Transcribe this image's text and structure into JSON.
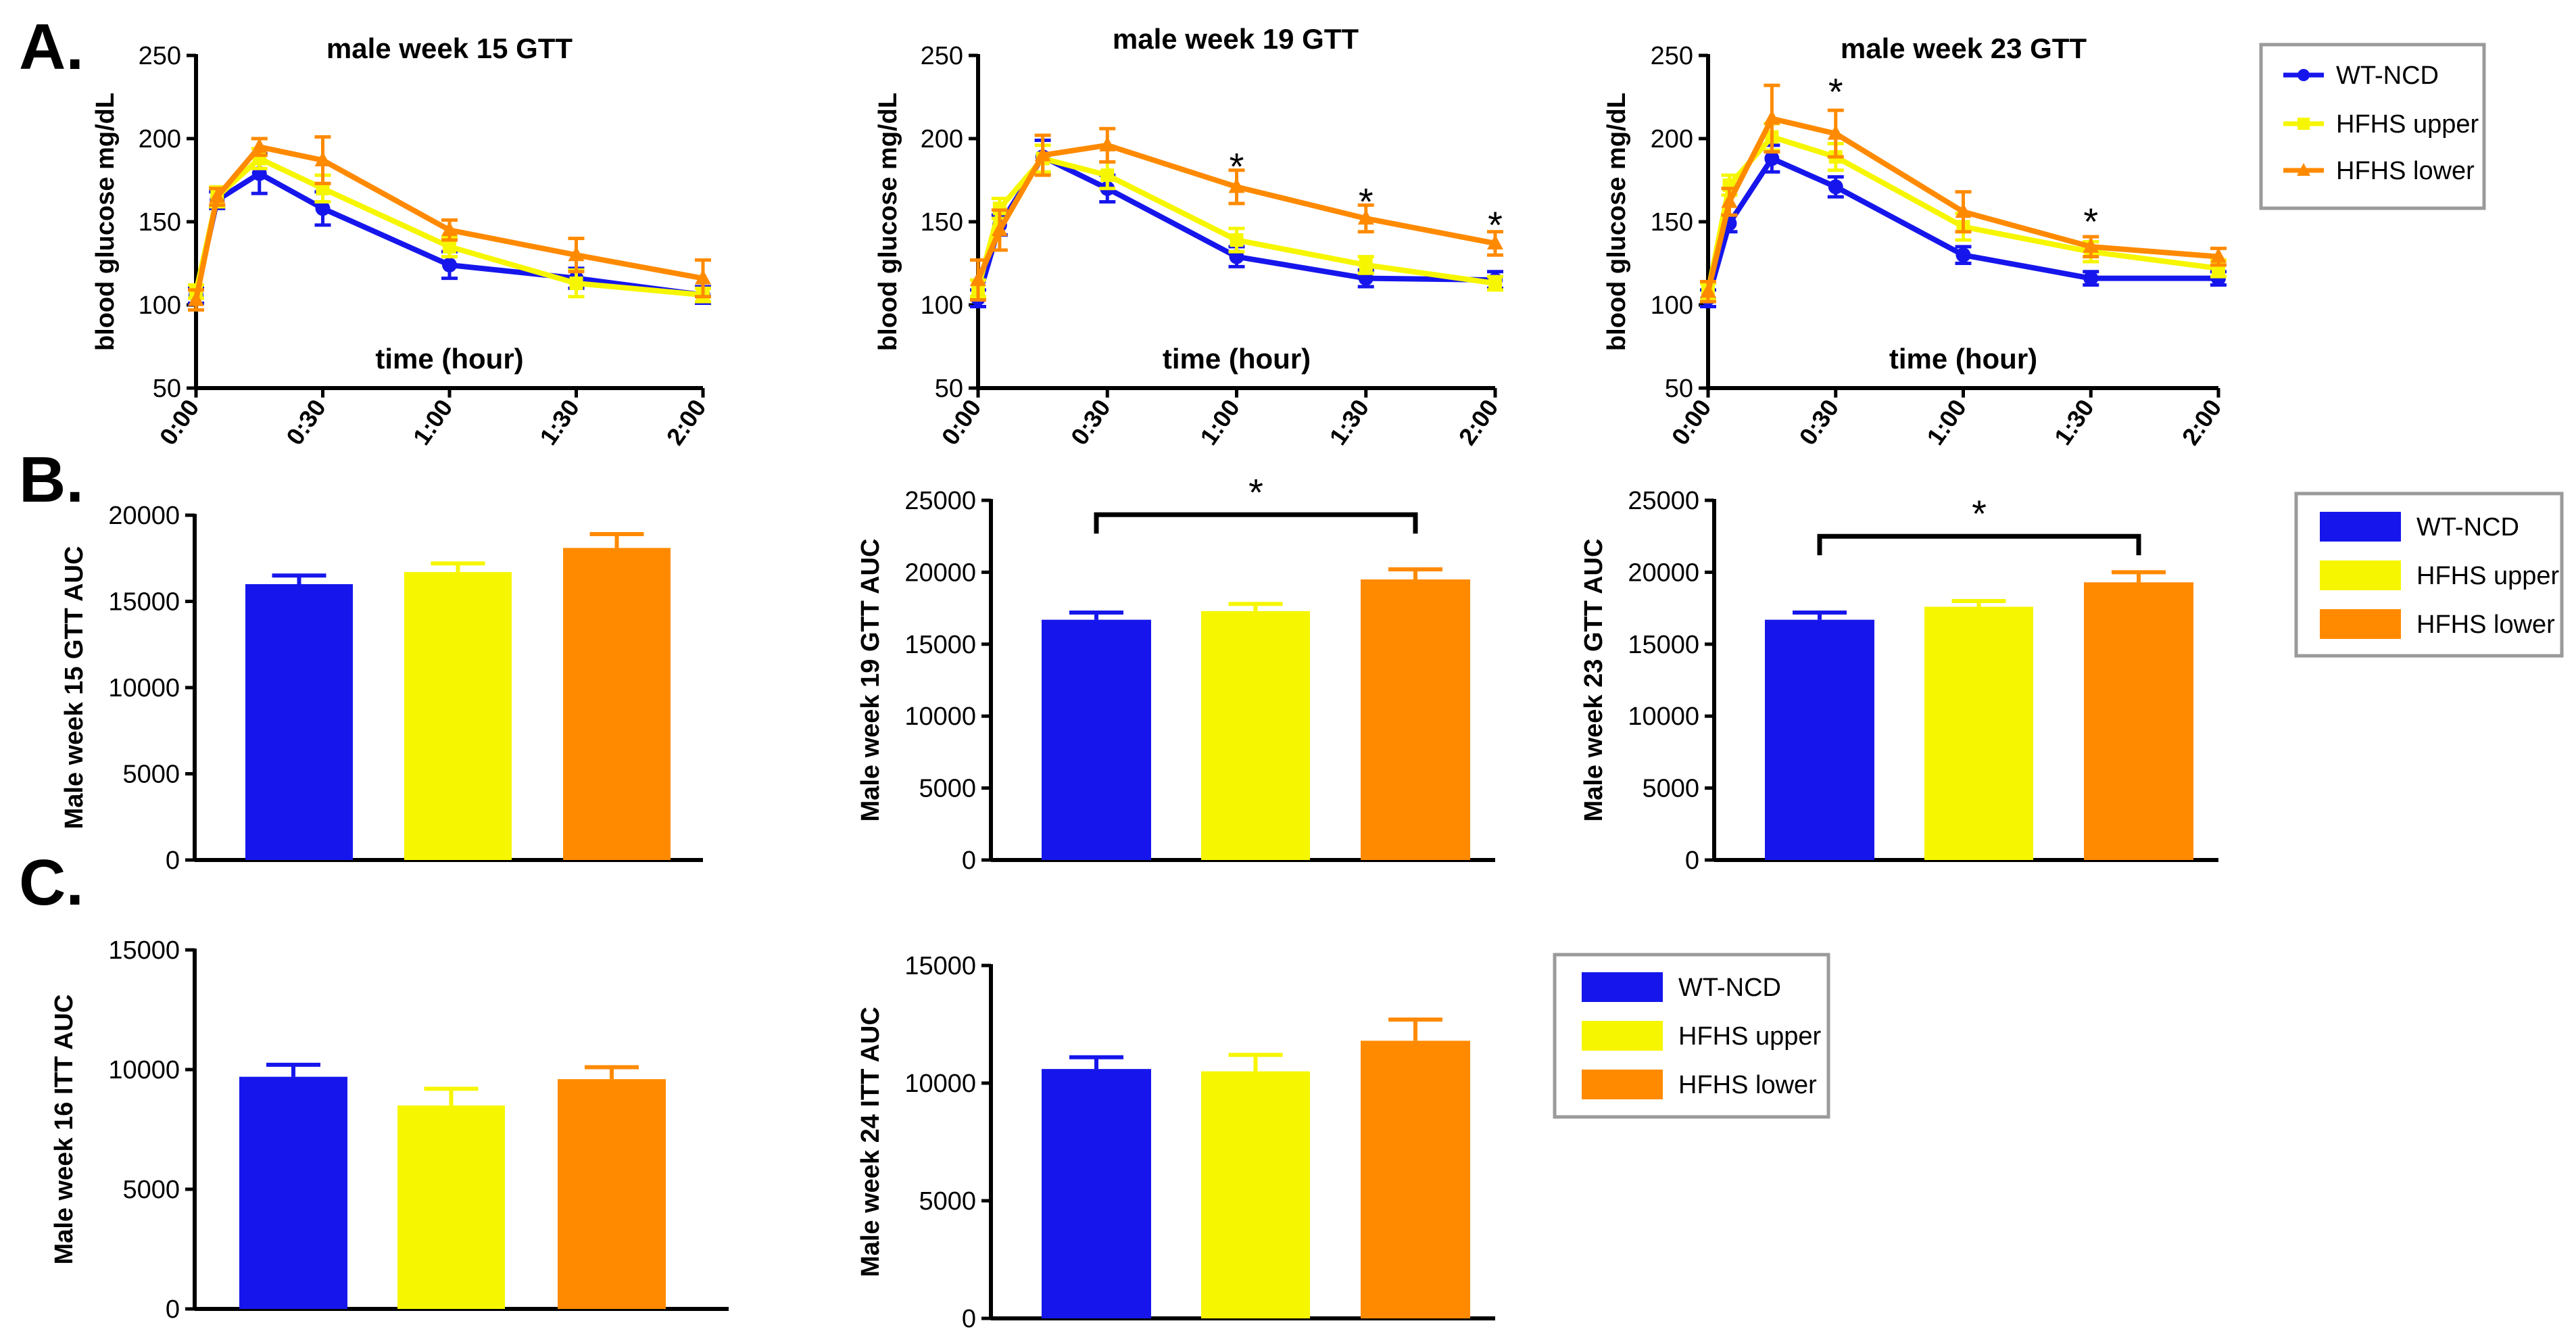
{
  "figure": {
    "panel_labels": [
      "A.",
      "B.",
      "C."
    ]
  },
  "colors": {
    "wt": "#1616ec",
    "upper": "#f6f600",
    "lower": "#ff8a00",
    "axis": "#000000",
    "legend_border": "#9a9a9a"
  },
  "legends": {
    "line": [
      "WT-NCD",
      "HFHS upper",
      "HFHS lower"
    ],
    "bar": [
      "WT-NCD",
      "HFHS upper",
      "HFHS lower"
    ]
  },
  "chart_data": [
    {
      "type": "line",
      "panel": "A",
      "title": "male week 15 GTT",
      "xlabel": "time (hour)",
      "ylabel": "blood glucose mg/dL",
      "x": [
        0,
        5,
        15,
        30,
        60,
        90,
        120
      ],
      "x_tick_labels": [
        "0:00",
        "0:30",
        "1:00",
        "1:30",
        "2:00"
      ],
      "x_tick_values": [
        0,
        30,
        60,
        90,
        120
      ],
      "ylim": [
        50,
        250
      ],
      "y_ticks": [
        50,
        100,
        150,
        200,
        250
      ],
      "series": [
        {
          "name": "WT-NCD",
          "marker": "circle",
          "values": [
            106,
            163,
            179,
            158,
            124,
            116,
            106
          ],
          "errors": [
            5,
            5,
            12,
            10,
            8,
            6,
            5
          ]
        },
        {
          "name": "HFHS upper",
          "marker": "square",
          "values": [
            108,
            165,
            188,
            170,
            135,
            113,
            106
          ],
          "errors": [
            4,
            6,
            6,
            8,
            6,
            8,
            4
          ]
        },
        {
          "name": "HFHS lower",
          "marker": "triangle",
          "values": [
            103,
            165,
            195,
            187,
            145,
            130,
            116
          ],
          "errors": [
            6,
            5,
            5,
            14,
            6,
            10,
            11
          ]
        }
      ],
      "significance": []
    },
    {
      "type": "line",
      "panel": "A",
      "title": "male week 19 GTT",
      "xlabel": "time (hour)",
      "ylabel": "blood glucose mg/dL",
      "x": [
        0,
        5,
        15,
        30,
        60,
        90,
        120
      ],
      "x_tick_labels": [
        "0:00",
        "0:30",
        "1:00",
        "1:30",
        "2:00"
      ],
      "x_tick_values": [
        0,
        30,
        60,
        90,
        120
      ],
      "ylim": [
        50,
        250
      ],
      "y_ticks": [
        50,
        100,
        150,
        200,
        250
      ],
      "series": [
        {
          "name": "WT-NCD",
          "marker": "circle",
          "values": [
            104,
            148,
            189,
            170,
            129,
            116,
            115
          ],
          "errors": [
            5,
            6,
            10,
            8,
            6,
            5,
            5
          ]
        },
        {
          "name": "HFHS upper",
          "marker": "square",
          "values": [
            110,
            158,
            188,
            178,
            139,
            124,
            113
          ],
          "errors": [
            5,
            6,
            8,
            8,
            7,
            5,
            4
          ]
        },
        {
          "name": "HFHS lower",
          "marker": "triangle",
          "values": [
            115,
            145,
            190,
            196,
            171,
            152,
            137
          ],
          "errors": [
            12,
            12,
            12,
            10,
            10,
            8,
            7
          ]
        }
      ],
      "significance": [
        {
          "x": 60,
          "value": 181,
          "label": "*"
        },
        {
          "x": 90,
          "value": 160,
          "label": "*"
        },
        {
          "x": 120,
          "value": 146,
          "label": "*"
        }
      ]
    },
    {
      "type": "line",
      "panel": "A",
      "title": "male week 23 GTT",
      "xlabel": "time (hour)",
      "ylabel": "blood glucose mg/dL",
      "x": [
        0,
        5,
        15,
        30,
        60,
        90,
        120
      ],
      "x_tick_labels": [
        "0:00",
        "0:30",
        "1:00",
        "1:30",
        "2:00"
      ],
      "x_tick_values": [
        0,
        30,
        60,
        90,
        120
      ],
      "ylim": [
        50,
        250
      ],
      "y_ticks": [
        50,
        100,
        150,
        200,
        250
      ],
      "series": [
        {
          "name": "WT-NCD",
          "marker": "circle",
          "values": [
            104,
            149,
            188,
            171,
            130,
            116,
            116
          ],
          "errors": [
            5,
            5,
            8,
            6,
            5,
            4,
            4
          ]
        },
        {
          "name": "HFHS upper",
          "marker": "square",
          "values": [
            108,
            172,
            201,
            189,
            147,
            132,
            122
          ],
          "errors": [
            5,
            6,
            8,
            8,
            8,
            6,
            5
          ]
        },
        {
          "name": "HFHS lower",
          "marker": "triangle",
          "values": [
            108,
            162,
            212,
            203,
            156,
            135,
            129
          ],
          "errors": [
            6,
            8,
            20,
            14,
            12,
            6,
            5
          ]
        }
      ],
      "significance": [
        {
          "x": 30,
          "value": 226,
          "label": "*"
        },
        {
          "x": 90,
          "value": 148,
          "label": "*"
        }
      ]
    },
    {
      "type": "bar",
      "panel": "B",
      "title": "",
      "ylabel": "Male week 15 GTT  AUC",
      "categories": [
        "WT-NCD",
        "HFHS upper",
        "HFHS lower"
      ],
      "values": [
        16000,
        16700,
        18100
      ],
      "errors": [
        500,
        500,
        800
      ],
      "ylim": [
        0,
        20000
      ],
      "y_ticks": [
        0,
        5000,
        10000,
        15000,
        20000
      ],
      "comparisons": []
    },
    {
      "type": "bar",
      "panel": "B",
      "title": "",
      "ylabel": "Male week 19 GTT AUC",
      "categories": [
        "WT-NCD",
        "HFHS upper",
        "HFHS lower"
      ],
      "values": [
        16700,
        17300,
        19500
      ],
      "errors": [
        500,
        500,
        700
      ],
      "ylim": [
        0,
        25000
      ],
      "y_ticks": [
        0,
        5000,
        10000,
        15000,
        20000,
        25000
      ],
      "comparisons": [
        {
          "from": 0,
          "to": 2,
          "value": 24000,
          "label": "*"
        }
      ]
    },
    {
      "type": "bar",
      "panel": "B",
      "title": "",
      "ylabel": "Male week 23 GTT AUC",
      "categories": [
        "WT-NCD",
        "HFHS upper",
        "HFHS lower"
      ],
      "values": [
        16700,
        17600,
        19300
      ],
      "errors": [
        500,
        400,
        700
      ],
      "ylim": [
        0,
        25000
      ],
      "y_ticks": [
        0,
        5000,
        10000,
        15000,
        20000,
        25000
      ],
      "comparisons": [
        {
          "from": 0,
          "to": 2,
          "value": 22500,
          "label": "*"
        }
      ]
    },
    {
      "type": "bar",
      "panel": "C",
      "title": "",
      "ylabel": "Male week 16 ITT AUC",
      "categories": [
        "WT-NCD",
        "HFHS upper",
        "HFHS lower"
      ],
      "values": [
        9700,
        8500,
        9600
      ],
      "errors": [
        500,
        700,
        500
      ],
      "ylim": [
        0,
        15000
      ],
      "y_ticks": [
        0,
        5000,
        10000,
        15000
      ],
      "comparisons": []
    },
    {
      "type": "bar",
      "panel": "C",
      "title": "",
      "ylabel": "Male week 24 ITT AUC",
      "categories": [
        "WT-NCD",
        "HFHS upper",
        "HFHS lower"
      ],
      "values": [
        10600,
        10500,
        11800
      ],
      "errors": [
        500,
        700,
        900
      ],
      "ylim": [
        0,
        15000
      ],
      "y_ticks": [
        0,
        5000,
        10000,
        15000
      ],
      "comparisons": []
    }
  ]
}
